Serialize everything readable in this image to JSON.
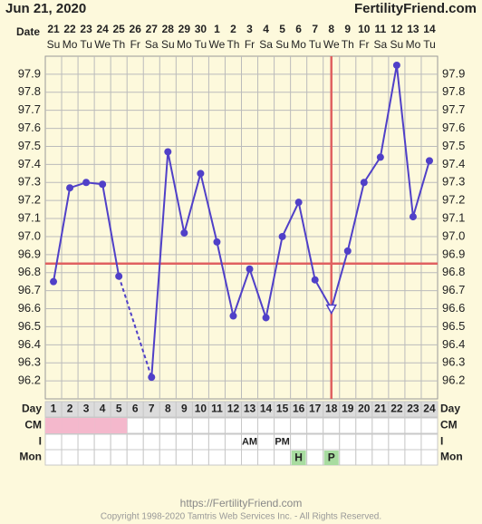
{
  "chart_data": {
    "type": "line",
    "title": "Jun 21, 2020",
    "site": "FertilityFriend.com",
    "date_label": "Date",
    "categories": [
      "21",
      "22",
      "23",
      "24",
      "25",
      "26",
      "27",
      "28",
      "29",
      "30",
      "1",
      "2",
      "3",
      "4",
      "5",
      "6",
      "7",
      "8",
      "9",
      "10",
      "11",
      "12",
      "13",
      "14"
    ],
    "weekdays": [
      "Su",
      "Mo",
      "Tu",
      "We",
      "Th",
      "Fr",
      "Sa",
      "Su",
      "Mo",
      "Tu",
      "We",
      "Th",
      "Fr",
      "Sa",
      "Su",
      "Mo",
      "Tu",
      "We",
      "Th",
      "Fr",
      "Sa",
      "Su",
      "Mo",
      "Tu"
    ],
    "day_label": "Day",
    "days": [
      1,
      2,
      3,
      4,
      5,
      6,
      7,
      8,
      9,
      10,
      11,
      12,
      13,
      14,
      15,
      16,
      17,
      18,
      19,
      20,
      21,
      22,
      23,
      24
    ],
    "values": [
      96.75,
      97.27,
      97.3,
      97.29,
      96.78,
      null,
      96.22,
      97.47,
      97.02,
      97.35,
      96.97,
      96.56,
      96.82,
      96.55,
      97.0,
      97.19,
      96.76,
      96.6,
      96.92,
      97.3,
      97.44,
      97.95,
      97.11,
      97.42
    ],
    "color": "#5040c8",
    "coverline": 96.85,
    "ovulation_day": 18,
    "marker_color": "#e06060",
    "ylim": [
      96.1,
      98.0
    ],
    "yticks": [
      96.2,
      96.3,
      96.4,
      96.5,
      96.6,
      96.7,
      96.8,
      96.9,
      {
        "value": 97,
        "label": "97.0"
      },
      97.1,
      97.2,
      97.3,
      97.4,
      97.5,
      97.6,
      97.7,
      97.8,
      97.9
    ],
    "grid": true,
    "cm": {
      "label": "CM",
      "color": "#f4b8cc",
      "days": [
        1,
        2,
        3,
        4,
        5
      ]
    },
    "intercourse": {
      "label": "I",
      "entries": [
        {
          "day": 13,
          "text": "AM"
        },
        {
          "day": 15,
          "text": "PM"
        }
      ]
    },
    "monitor": {
      "label": "Mon",
      "color": "#a8dca0",
      "entries": [
        {
          "day": 16,
          "text": "H"
        },
        {
          "day": 18,
          "text": "P"
        }
      ]
    }
  },
  "footer": {
    "url": "https://FertilityFriend.com",
    "copyright": "Copyright 1998-2020 Tamtris Web Services Inc. - All Rights Reserved."
  }
}
